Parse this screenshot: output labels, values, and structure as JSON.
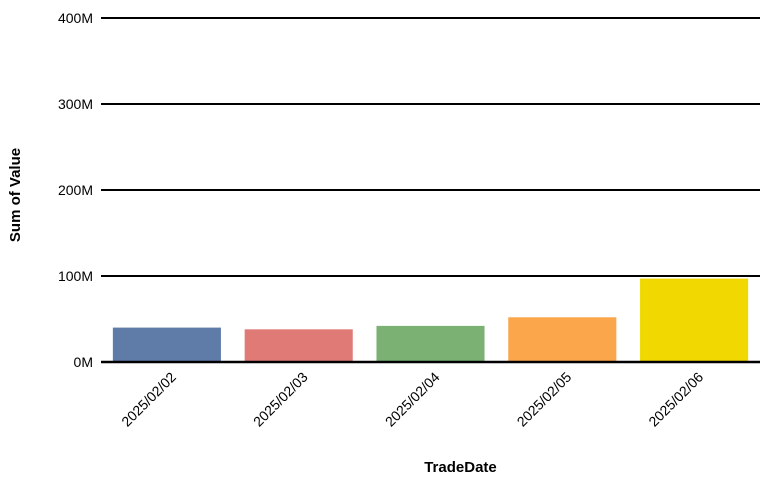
{
  "chart_data": {
    "type": "bar",
    "title": "",
    "xlabel": "TradeDate",
    "ylabel": "Sum of Value",
    "categories": [
      "2025/02/02",
      "2025/02/03",
      "2025/02/04",
      "2025/02/05",
      "2025/02/06"
    ],
    "values": [
      40000000,
      38000000,
      42000000,
      52000000,
      97000000
    ],
    "colors": [
      "#5f7ba8",
      "#e07a76",
      "#7bb274",
      "#fba64b",
      "#f0d800"
    ],
    "ylim": [
      0,
      400000000
    ],
    "yticks": [
      0,
      100000000,
      200000000,
      300000000,
      400000000
    ],
    "ytick_labels": [
      "0M",
      "100M",
      "200M",
      "300M",
      "400M"
    ],
    "grid": true,
    "legend": "none"
  }
}
